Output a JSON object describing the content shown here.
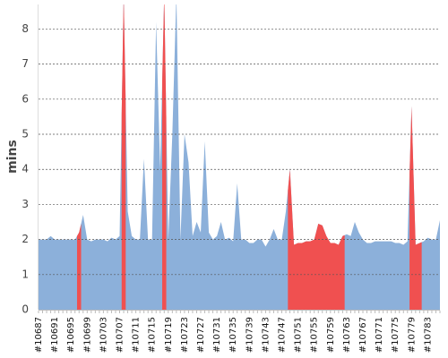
{
  "chart_data": {
    "type": "area",
    "y_label": "mins",
    "categories": [
      "#10687",
      null,
      null,
      null,
      "#10691",
      null,
      null,
      null,
      "#10695",
      null,
      null,
      null,
      "#10699",
      null,
      null,
      null,
      "#10703",
      null,
      null,
      null,
      "#10707",
      null,
      null,
      null,
      "#10711",
      null,
      null,
      null,
      "#10715",
      null,
      null,
      null,
      "#10719",
      null,
      null,
      null,
      "#10723",
      null,
      null,
      null,
      "#10727",
      null,
      null,
      null,
      "#10731",
      null,
      null,
      null,
      "#10735",
      null,
      null,
      null,
      "#10739",
      null,
      null,
      null,
      "#10743",
      null,
      null,
      null,
      "#10747",
      null,
      null,
      null,
      "#10751",
      null,
      null,
      null,
      "#10755",
      null,
      null,
      null,
      "#10759",
      null,
      null,
      null,
      "#10763",
      null,
      null,
      null,
      "#10767",
      null,
      null,
      null,
      "#10771",
      null,
      null,
      null,
      "#10775",
      null,
      null,
      null,
      "#10779",
      null,
      null,
      null,
      "#10783",
      null,
      null,
      null
    ],
    "series": [
      {
        "color": "#8cb0da",
        "values": [
          2.0,
          2.0,
          2.0,
          2.1,
          2.0,
          2.0,
          2.0,
          2.0,
          2.0,
          2.0,
          2.2,
          2.7,
          2.0,
          1.95,
          2.0,
          2.0,
          2.0,
          1.95,
          2.05,
          2.0,
          2.1,
          9.0,
          2.8,
          2.1,
          2.0,
          2.0,
          4.3,
          2.0,
          2.0,
          8.2,
          4.0,
          9.0,
          2.0,
          5.0,
          9.0,
          2.0,
          5.0,
          4.2,
          2.1,
          2.5,
          2.2,
          4.8,
          2.2,
          2.0,
          2.1,
          2.5,
          2.0,
          2.05,
          1.95,
          3.6,
          2.0,
          2.0,
          1.9,
          1.9,
          2.0,
          2.0,
          1.8,
          2.0,
          2.3,
          2.0,
          2.0,
          2.8,
          4.0,
          1.85,
          1.9,
          1.9,
          1.95,
          1.95,
          2.0,
          2.45,
          2.4,
          2.1,
          1.9,
          1.9,
          1.85,
          2.1,
          2.15,
          2.1,
          2.5,
          2.2,
          2.0,
          1.9,
          1.9,
          1.95,
          1.95,
          1.95,
          1.95,
          1.95,
          1.9,
          1.9,
          1.85,
          1.95,
          5.8,
          1.85,
          1.9,
          1.95,
          2.05,
          2.0,
          2.0,
          2.55
        ]
      },
      {
        "color": "#f05050",
        "values": [
          null,
          null,
          null,
          null,
          null,
          null,
          null,
          null,
          null,
          null,
          2.2,
          null,
          null,
          null,
          null,
          null,
          null,
          null,
          null,
          null,
          null,
          9.0,
          null,
          null,
          null,
          null,
          null,
          null,
          null,
          null,
          null,
          9.0,
          null,
          null,
          null,
          null,
          null,
          null,
          null,
          null,
          null,
          null,
          null,
          null,
          null,
          null,
          null,
          null,
          null,
          null,
          null,
          null,
          null,
          null,
          null,
          null,
          null,
          null,
          null,
          null,
          null,
          null,
          4.0,
          1.85,
          1.9,
          1.9,
          1.95,
          1.95,
          2.0,
          2.45,
          2.4,
          2.1,
          1.9,
          1.9,
          1.85,
          2.1,
          null,
          null,
          null,
          null,
          null,
          null,
          null,
          null,
          null,
          null,
          null,
          null,
          null,
          null,
          null,
          null,
          5.8,
          1.85,
          1.9,
          null,
          null,
          null,
          null,
          null
        ]
      }
    ],
    "ylim": [
      0,
      8.7
    ],
    "yticks": [
      0,
      1,
      2,
      3,
      4,
      5,
      6,
      7,
      8
    ],
    "grid": true
  }
}
